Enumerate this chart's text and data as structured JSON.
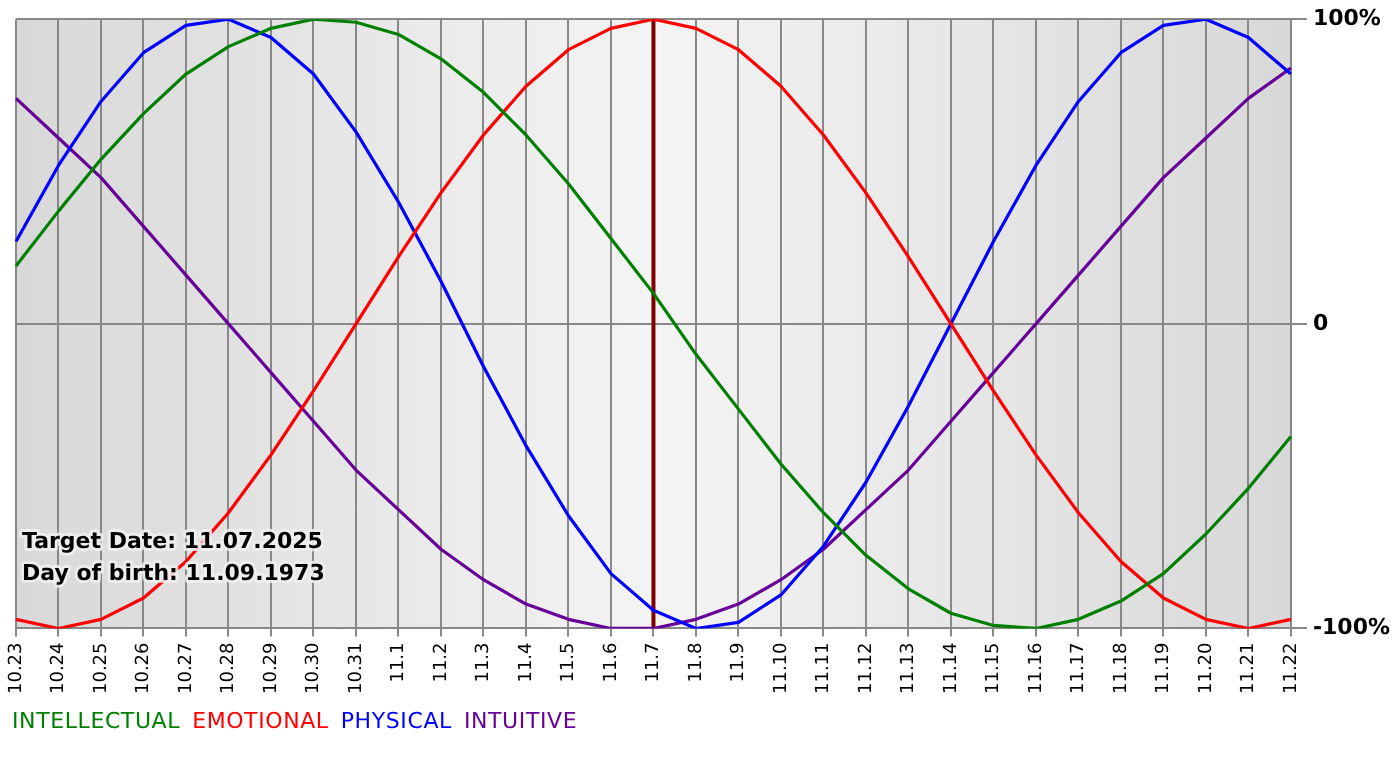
{
  "chart_data": {
    "type": "line",
    "categories": [
      "10.23",
      "10.24",
      "10.25",
      "10.26",
      "10.27",
      "10.28",
      "10.29",
      "10.30",
      "10.31",
      "11.1",
      "11.2",
      "11.3",
      "11.4",
      "11.5",
      "11.6",
      "11.7",
      "11.8",
      "11.9",
      "11.10",
      "11.11",
      "11.12",
      "11.13",
      "11.14",
      "11.15",
      "11.16",
      "11.17",
      "11.18",
      "11.19",
      "11.20",
      "11.21",
      "11.22"
    ],
    "series": [
      {
        "name": "INTELLECTUAL",
        "color": "#008000",
        "values": [
          19,
          37,
          54,
          69,
          82,
          91,
          97,
          100,
          99,
          95,
          87,
          76,
          62,
          46,
          28,
          10,
          -10,
          -28,
          -46,
          -62,
          -76,
          -87,
          -95,
          -99,
          -100,
          -97,
          -91,
          -82,
          -69,
          -54,
          -37
        ]
      },
      {
        "name": "EMOTIONAL",
        "color": "#ff0000",
        "values": [
          -97,
          -100,
          -97,
          -90,
          -78,
          -62,
          -43,
          -22,
          0,
          22,
          43,
          62,
          78,
          90,
          97,
          100,
          97,
          90,
          78,
          62,
          43,
          22,
          0,
          -22,
          -43,
          -62,
          -78,
          -90,
          -97,
          -100,
          -97
        ]
      },
      {
        "name": "PHYSICAL",
        "color": "#0000ff",
        "values": [
          27,
          52,
          73,
          89,
          98,
          100,
          94,
          82,
          63,
          40,
          14,
          -14,
          -40,
          -63,
          -82,
          -94,
          -100,
          -98,
          -89,
          -73,
          -52,
          -27,
          0,
          27,
          52,
          73,
          89,
          98,
          100,
          94,
          82
        ]
      },
      {
        "name": "INTUITIVE",
        "color": "#660099",
        "values": [
          74,
          61,
          48,
          32,
          16,
          0,
          -16,
          -32,
          -48,
          -61,
          -74,
          -84,
          -92,
          -97,
          -100,
          -100,
          -97,
          -92,
          -84,
          -74,
          -61,
          -48,
          -32,
          -16,
          0,
          16,
          32,
          48,
          61,
          74,
          84
        ]
      }
    ],
    "ylim": [
      -100,
      100
    ],
    "yticks": [
      {
        "value": -100,
        "label": "-100%"
      },
      0,
      {
        "value": 100,
        "label": "100%"
      }
    ],
    "grid": true,
    "legend": "bottom",
    "ref_lines": [
      {
        "axis": "x",
        "value": "11.7",
        "color": "#800000"
      }
    ],
    "annotations": [
      "Target Date: 11.07.2025",
      "Day of birth: 11.09.1973"
    ]
  }
}
